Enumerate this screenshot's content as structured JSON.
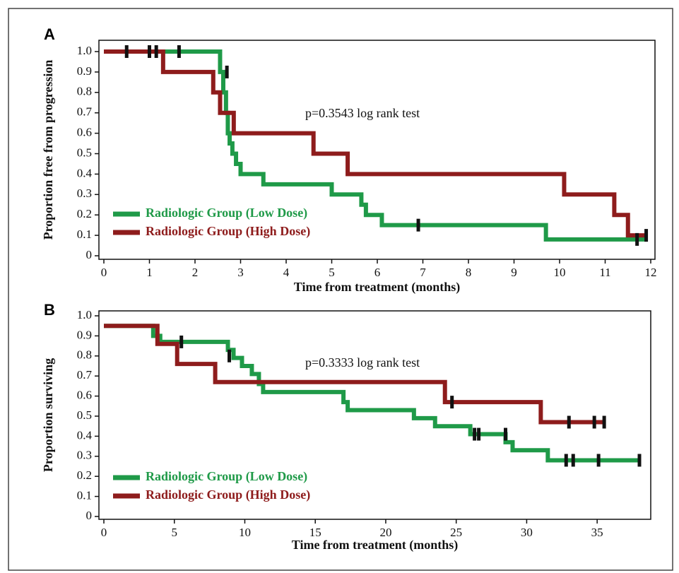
{
  "chart_data": [
    {
      "type": "line",
      "step": true,
      "label": "A",
      "annotation": "p=0.3543 log rank test",
      "xlabel": "Time from treatment (months)",
      "ylabel": "Proportion free from progression",
      "xlim": [
        0,
        12
      ],
      "ylim": [
        0,
        1
      ],
      "xticks": [
        0,
        1,
        2,
        3,
        4,
        5,
        6,
        7,
        8,
        9,
        10,
        11,
        12
      ],
      "yticks": [
        0,
        0.1,
        0.2,
        0.3,
        0.4,
        0.5,
        0.6,
        0.7,
        0.8,
        0.9,
        {
          "value": 1,
          "label": "1.0"
        }
      ],
      "legend": "lower left",
      "series": [
        {
          "name": "Radiologic Group (Low Dose)",
          "color": "#1f9a48",
          "x": [
            0,
            2.55,
            2.62,
            2.68,
            2.72,
            2.76,
            2.82,
            2.9,
            3.0,
            3.5,
            5.0,
            5.65,
            5.75,
            6.1,
            9.7,
            11.9
          ],
          "values": [
            1,
            0.9,
            0.8,
            0.7,
            0.6,
            0.55,
            0.5,
            0.45,
            0.4,
            0.35,
            0.3,
            0.25,
            0.2,
            0.15,
            0.08,
            0.08
          ],
          "censored_x": [
            0.5,
            1.0,
            1.15,
            1.65,
            6.9,
            11.7
          ],
          "censored_values": [
            1,
            1,
            1,
            1,
            0.15,
            0.08
          ]
        },
        {
          "name": "Radiologic Group (High Dose)",
          "color": "#8e1c1c",
          "x": [
            0,
            1.3,
            2.4,
            2.55,
            2.85,
            4.6,
            5.35,
            10.1,
            11.2,
            11.5,
            11.9
          ],
          "values": [
            1,
            0.9,
            0.8,
            0.7,
            0.6,
            0.5,
            0.4,
            0.3,
            0.2,
            0.1,
            0.1
          ],
          "censored_x": [
            2.7,
            11.9
          ],
          "censored_values": [
            0.9,
            0.1
          ]
        }
      ]
    },
    {
      "type": "line",
      "step": true,
      "label": "B",
      "annotation": "p=0.3333 log rank test",
      "xlabel": "Time from treatment (months)",
      "ylabel": "Proportion surviving",
      "xlim": [
        0,
        38
      ],
      "ylim": [
        0,
        1
      ],
      "xticks": [
        0,
        5,
        10,
        15,
        20,
        25,
        30,
        35
      ],
      "yticks": [
        0,
        0.1,
        0.2,
        0.3,
        0.4,
        0.5,
        0.6,
        0.7,
        0.8,
        0.9,
        {
          "value": 1,
          "label": "1.0"
        }
      ],
      "legend": "lower left",
      "series": [
        {
          "name": "Radiologic Group (Low Dose)",
          "color": "#1f9a48",
          "x": [
            0,
            3.5,
            4.0,
            8.8,
            9.2,
            9.8,
            10.5,
            11.0,
            11.3,
            17.0,
            17.3,
            22.0,
            23.5,
            26.0,
            28.5,
            29.0,
            31.5,
            38
          ],
          "values": [
            0.95,
            0.9,
            0.87,
            0.83,
            0.79,
            0.75,
            0.71,
            0.66,
            0.62,
            0.57,
            0.53,
            0.49,
            0.45,
            0.41,
            0.37,
            0.33,
            0.28,
            0.28
          ],
          "censored_x": [
            5.5,
            8.9,
            26.3,
            26.6,
            28.5,
            32.8,
            33.3,
            35.1,
            38
          ],
          "censored_values": [
            0.87,
            0.8,
            0.41,
            0.41,
            0.41,
            0.28,
            0.28,
            0.28,
            0.28
          ]
        },
        {
          "name": "Radiologic Group (High Dose)",
          "color": "#8e1c1c",
          "x": [
            0,
            3.8,
            5.2,
            7.9,
            24.2,
            31.0,
            35.5
          ],
          "values": [
            0.95,
            0.86,
            0.76,
            0.67,
            0.57,
            0.47,
            0.47
          ],
          "censored_x": [
            24.7,
            33.0,
            34.8,
            35.5
          ],
          "censored_values": [
            0.57,
            0.47,
            0.47,
            0.47
          ]
        }
      ]
    }
  ]
}
